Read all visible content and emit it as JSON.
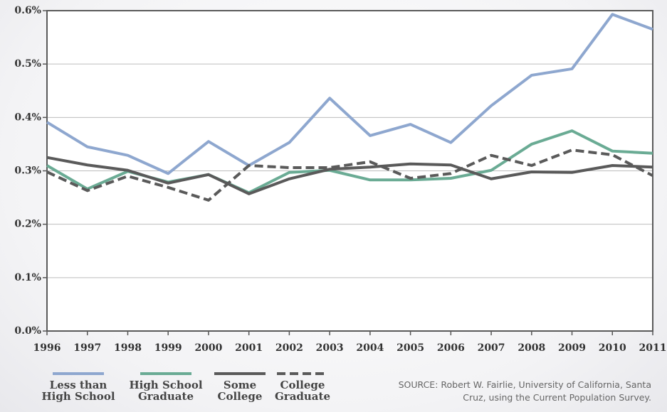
{
  "chart_data": {
    "type": "line",
    "x": [
      1996,
      1997,
      1998,
      1999,
      2000,
      2001,
      2002,
      2003,
      2004,
      2005,
      2006,
      2007,
      2008,
      2009,
      2010,
      2011
    ],
    "xlim": [
      1996,
      2011
    ],
    "xticks": [
      1996,
      1997,
      1998,
      1999,
      2000,
      2001,
      2002,
      2003,
      2004,
      2005,
      2006,
      2007,
      2008,
      2009,
      2010,
      2011
    ],
    "ylim": [
      0,
      0.6
    ],
    "yticks": [
      {
        "value": 0,
        "label": "0.0%"
      },
      {
        "value": 0.1,
        "label": "0.1%"
      },
      {
        "value": 0.2,
        "label": "0.2%"
      },
      {
        "value": 0.3,
        "label": "0.3%"
      },
      {
        "value": 0.4,
        "label": "0.4%"
      },
      {
        "value": 0.5,
        "label": "0.5%"
      },
      {
        "value": 0.6,
        "label": "0.6%"
      }
    ],
    "grid": true,
    "series": [
      {
        "name": "Less than High School",
        "color": "#8ea7cf",
        "dash": false,
        "values": [
          0.391,
          0.345,
          0.329,
          0.295,
          0.355,
          0.31,
          0.353,
          0.436,
          0.366,
          0.387,
          0.353,
          0.422,
          0.479,
          0.491,
          0.593,
          0.565
        ]
      },
      {
        "name": "High School Graduate",
        "color": "#6aab94",
        "dash": false,
        "values": [
          0.31,
          0.266,
          0.299,
          0.279,
          0.293,
          0.259,
          0.297,
          0.301,
          0.283,
          0.283,
          0.286,
          0.301,
          0.35,
          0.375,
          0.337,
          0.333
        ]
      },
      {
        "name": "Some College",
        "color": "#5a5a5a",
        "dash": false,
        "values": [
          0.325,
          0.311,
          0.301,
          0.277,
          0.293,
          0.257,
          0.285,
          0.303,
          0.307,
          0.313,
          0.311,
          0.285,
          0.298,
          0.297,
          0.31,
          0.307
        ]
      },
      {
        "name": "College Graduate",
        "color": "#5a5a5a",
        "dash": true,
        "values": [
          0.298,
          0.263,
          0.29,
          0.269,
          0.245,
          0.31,
          0.306,
          0.306,
          0.317,
          0.286,
          0.295,
          0.329,
          0.31,
          0.339,
          0.33,
          0.291
        ]
      }
    ],
    "source": "SOURCE: Robert W. Fairlie, University of California, Santa Cruz, using the Current Population Survey."
  }
}
